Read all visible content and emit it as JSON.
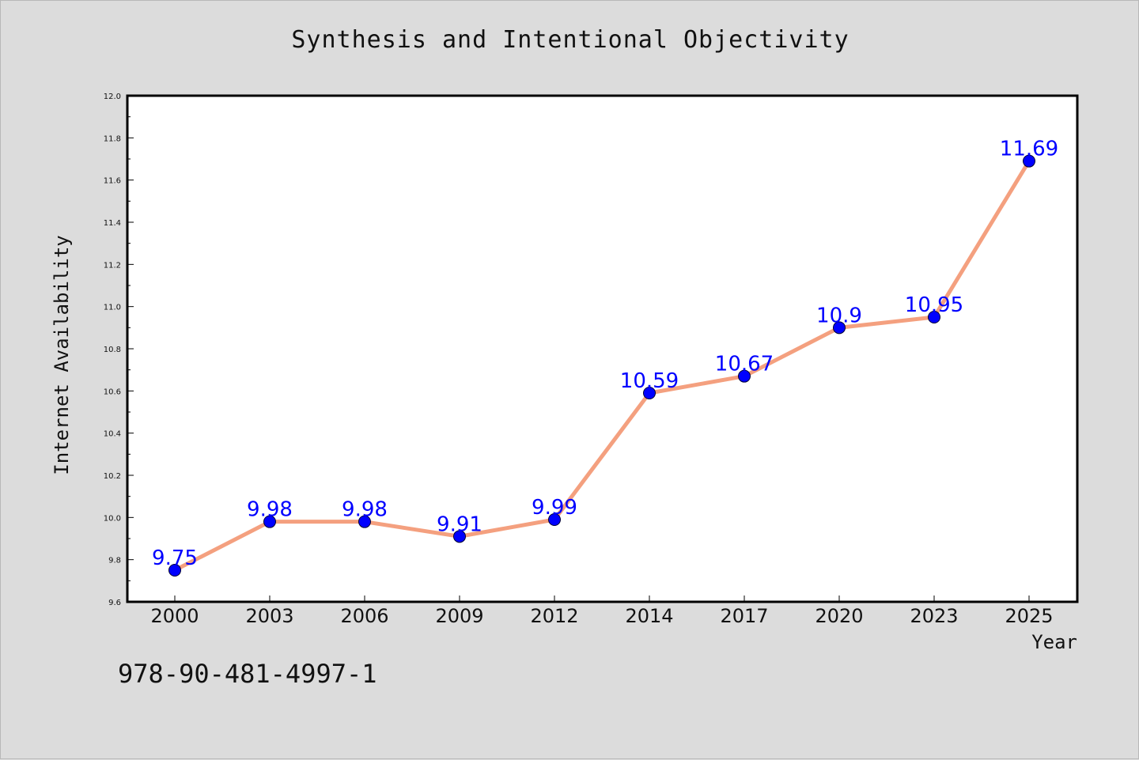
{
  "chart_data": {
    "type": "line",
    "title": "Synthesis and Intentional Objectivity",
    "xlabel": "Year",
    "ylabel": "Internet Availability",
    "categories": [
      "2000",
      "2003",
      "2006",
      "2009",
      "2012",
      "2014",
      "2017",
      "2020",
      "2023",
      "2025"
    ],
    "values": [
      9.75,
      9.98,
      9.98,
      9.91,
      9.99,
      10.59,
      10.67,
      10.9,
      10.95,
      11.69
    ],
    "data_labels": [
      "9.75",
      "9.98",
      "9.98",
      "9.91",
      "9.99",
      "10.59",
      "10.67",
      "10.9",
      "10.95",
      "11.69"
    ],
    "ylim": [
      9.6,
      12.0
    ],
    "yticks": [
      "9.6",
      "9.8",
      "10.0",
      "10.2",
      "10.4",
      "10.6",
      "10.8",
      "11.0",
      "11.2",
      "11.4",
      "11.6",
      "11.8",
      "12.0"
    ],
    "grid": false,
    "line_color": "#f4a07f",
    "marker_color": "#0000ff",
    "label_color": "#0000ff"
  },
  "footer": {
    "identifier": "978-90-481-4997-1"
  }
}
